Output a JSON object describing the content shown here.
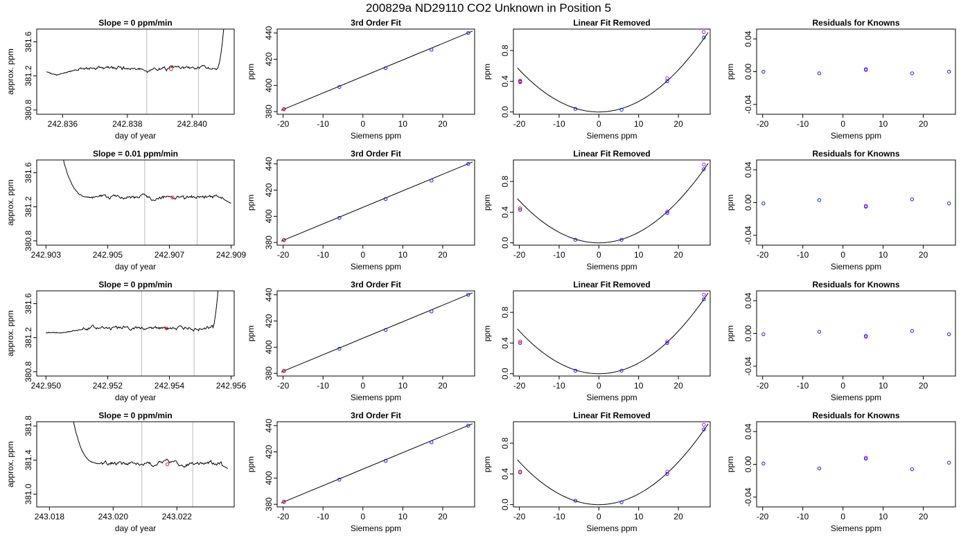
{
  "figure_title": "200829a     ND29110   CO2 Unknown in Position  5",
  "chart_data": [
    {
      "type": "line",
      "row": 0,
      "col": 0,
      "title": "Slope =  0  ppm/min",
      "xlabel": "day of year",
      "ylabel": "approx. ppm",
      "xlim": [
        242.8352,
        242.8413
      ],
      "ylim": [
        380.75,
        381.75
      ],
      "xticks": [
        242.836,
        242.838,
        242.84
      ],
      "xtick_labels": [
        "242.836",
        "242.838",
        "242.840"
      ],
      "yticks": [
        380.8,
        381.2,
        381.6
      ],
      "ytick_labels": [
        "380.8",
        "381.2",
        "381.6"
      ],
      "vlines": [
        242.8386,
        242.8402
      ],
      "trace": {
        "x0": 242.8355,
        "x1": 242.841,
        "base": 381.29,
        "seed": 11,
        "lead": [
          {
            "dx": 0,
            "v": 381.25
          },
          {
            "dx": 0.0003,
            "v": 381.21
          },
          {
            "dx": 0.0009,
            "v": 381.27
          }
        ],
        "dips": [
          {
            "x": 242.8386,
            "v": 381.25,
            "w": 0.00015
          }
        ],
        "tail": {
          "x": 242.8408,
          "v": 381.31,
          "end": 381.85
        }
      },
      "markers": [
        {
          "x": 242.83935,
          "y": 381.28,
          "color": "#ff0000"
        }
      ]
    },
    {
      "type": "scatter",
      "row": 0,
      "col": 1,
      "title": "3rd Order Fit",
      "xlabel": "Siemens ppm",
      "ylabel": "ppm",
      "xlim": [
        -21.5,
        28
      ],
      "ylim": [
        378,
        443
      ],
      "xticks": [
        -20,
        -10,
        0,
        10,
        20
      ],
      "xtick_labels": [
        "-20",
        "-10",
        "0",
        "10",
        "20"
      ],
      "yticks": [
        380,
        400,
        420,
        440
      ],
      "ytick_labels": [
        "380",
        "400",
        "420",
        "440"
      ],
      "points": [
        {
          "x": -19.8,
          "y": 381.8
        },
        {
          "x": -5.9,
          "y": 398.8
        },
        {
          "x": 5.7,
          "y": 413.2
        },
        {
          "x": 17.2,
          "y": 427.3
        },
        {
          "x": 26.4,
          "y": 440.0
        }
      ],
      "line": [
        [
          -20.5,
          381.0
        ],
        [
          27.5,
          441.5
        ]
      ],
      "markers": [
        {
          "x": -19.8,
          "y": 382.0,
          "color": "#ff0000"
        }
      ]
    },
    {
      "type": "scatter",
      "row": 0,
      "col": 2,
      "title": "Linear Fit Removed",
      "xlabel": "Siemens ppm",
      "ylabel": "ppm",
      "xlim": [
        -21.5,
        28
      ],
      "ylim": [
        -0.03,
        1.08
      ],
      "xticks": [
        -20,
        -10,
        0,
        10,
        20
      ],
      "xtick_labels": [
        "-20",
        "-10",
        "0",
        "10",
        "20"
      ],
      "yticks": [
        0.0,
        0.4,
        0.8
      ],
      "ytick_labels": [
        "0.0",
        "0.4",
        "0.8"
      ],
      "curve": {
        "a": 0.00137,
        "b": 0.0,
        "c": 0.0,
        "x0": -20.5,
        "x1": 27.5
      },
      "points": [
        {
          "x": -19.8,
          "y": 0.39
        },
        {
          "x": -5.9,
          "y": 0.04
        },
        {
          "x": 5.7,
          "y": 0.03
        },
        {
          "x": 17.2,
          "y": 0.4
        },
        {
          "x": 26.4,
          "y": 0.97
        }
      ],
      "points2": [
        {
          "x": -19.8,
          "y": 0.41
        },
        {
          "x": 17.2,
          "y": 0.44
        },
        {
          "x": 26.4,
          "y": 1.04
        }
      ],
      "markers": [
        {
          "x": -19.8,
          "y": 0.4,
          "color": "#ff0000"
        }
      ]
    },
    {
      "type": "scatter",
      "row": 0,
      "col": 3,
      "title": "Residuals for Knowns",
      "xlabel": "Siemens ppm",
      "ylabel": "ppm",
      "xlim": [
        -21.5,
        28
      ],
      "ylim": [
        -0.052,
        0.052
      ],
      "xticks": [
        -20,
        -10,
        0,
        10,
        20
      ],
      "xtick_labels": [
        "-20",
        "-10",
        "0",
        "10",
        "20"
      ],
      "yticks": [
        -0.04,
        0.0,
        0.04
      ],
      "ytick_labels": [
        "-0.04",
        "0.00",
        "0.04"
      ],
      "points": [
        {
          "x": -19.8,
          "y": 0.0
        },
        {
          "x": -5.9,
          "y": -0.002
        },
        {
          "x": 5.7,
          "y": 0.003
        },
        {
          "x": 17.2,
          "y": -0.002
        },
        {
          "x": 26.4,
          "y": 0.0
        }
      ],
      "points2": [
        {
          "x": 5.7,
          "y": 0.002
        }
      ]
    },
    {
      "type": "line",
      "row": 1,
      "col": 0,
      "title": "Slope =  0.01  ppm/min",
      "xlabel": "day of year",
      "ylabel": "approx. ppm",
      "xlim": [
        242.9027,
        242.9091
      ],
      "ylim": [
        380.75,
        381.75
      ],
      "xticks": [
        242.903,
        242.905,
        242.907,
        242.909
      ],
      "xtick_labels": [
        "242.903",
        "242.905",
        "242.907",
        "242.909"
      ],
      "yticks": [
        380.8,
        381.2,
        381.6
      ],
      "ytick_labels": [
        "380.8",
        "381.2",
        "381.6"
      ],
      "vlines": [
        242.9062,
        242.9079
      ],
      "trace": {
        "x0": 242.9035,
        "x1": 242.909,
        "base": 381.31,
        "seed": 23,
        "head": {
          "x": 242.9035,
          "v": 381.85,
          "x1": 242.9045
        },
        "dips": [],
        "end": [
          {
            "dx": -0.0002,
            "v": 381.28
          },
          {
            "dx": 0,
            "v": 381.24
          }
        ]
      },
      "markers": [
        {
          "x": 242.9071,
          "y": 381.31,
          "color": "#ff0000"
        }
      ]
    },
    {
      "type": "scatter",
      "row": 1,
      "col": 1,
      "title": "3rd Order Fit",
      "xlabel": "Siemens ppm",
      "ylabel": "ppm",
      "xlim": [
        -21.5,
        28
      ],
      "ylim": [
        378,
        443
      ],
      "xticks": [
        -20,
        -10,
        0,
        10,
        20
      ],
      "xtick_labels": [
        "-20",
        "-10",
        "0",
        "10",
        "20"
      ],
      "yticks": [
        380,
        400,
        420,
        440
      ],
      "ytick_labels": [
        "380",
        "400",
        "420",
        "440"
      ],
      "points": [
        {
          "x": -19.8,
          "y": 381.8
        },
        {
          "x": -5.9,
          "y": 398.8
        },
        {
          "x": 5.7,
          "y": 413.2
        },
        {
          "x": 17.2,
          "y": 427.3
        },
        {
          "x": 26.4,
          "y": 440.0
        }
      ],
      "line": [
        [
          -20.5,
          381.0
        ],
        [
          27.5,
          441.5
        ]
      ],
      "markers": [
        {
          "x": -19.8,
          "y": 382.0,
          "color": "#ff0000"
        }
      ]
    },
    {
      "type": "scatter",
      "row": 1,
      "col": 2,
      "title": "Linear Fit Removed",
      "xlabel": "Siemens ppm",
      "ylabel": "ppm",
      "xlim": [
        -21.5,
        28
      ],
      "ylim": [
        -0.03,
        1.08
      ],
      "xticks": [
        -20,
        -10,
        0,
        10,
        20
      ],
      "xtick_labels": [
        "-20",
        "-10",
        "0",
        "10",
        "20"
      ],
      "yticks": [
        0.0,
        0.4,
        0.8
      ],
      "ytick_labels": [
        "0.0",
        "0.4",
        "0.8"
      ],
      "curve": {
        "a": 0.00137,
        "b": 0.0,
        "c": 0.0,
        "x0": -20.5,
        "x1": 27.5
      },
      "points": [
        {
          "x": -19.8,
          "y": 0.43
        },
        {
          "x": -5.9,
          "y": 0.04
        },
        {
          "x": 5.7,
          "y": 0.04
        },
        {
          "x": 17.2,
          "y": 0.39
        },
        {
          "x": 26.4,
          "y": 0.96
        }
      ],
      "points2": [
        {
          "x": 17.2,
          "y": 0.41
        },
        {
          "x": 26.4,
          "y": 1.02
        }
      ],
      "markers": [
        {
          "x": -19.8,
          "y": 0.45,
          "color": "#ff0000"
        }
      ]
    },
    {
      "type": "scatter",
      "row": 1,
      "col": 3,
      "title": "Residuals for Knowns",
      "xlabel": "Siemens ppm",
      "ylabel": "ppm",
      "xlim": [
        -21.5,
        28
      ],
      "ylim": [
        -0.052,
        0.052
      ],
      "xticks": [
        -20,
        -10,
        0,
        10,
        20
      ],
      "xtick_labels": [
        "-20",
        "-10",
        "0",
        "10",
        "20"
      ],
      "yticks": [
        -0.04,
        0.0,
        0.04
      ],
      "ytick_labels": [
        "-0.04",
        "0.00",
        "0.04"
      ],
      "points": [
        {
          "x": -19.8,
          "y": -0.001
        },
        {
          "x": -5.9,
          "y": 0.003
        },
        {
          "x": 5.7,
          "y": -0.005
        },
        {
          "x": 17.2,
          "y": 0.004
        },
        {
          "x": 26.4,
          "y": -0.001
        }
      ],
      "points2": [
        {
          "x": 5.7,
          "y": -0.004
        }
      ]
    },
    {
      "type": "line",
      "row": 2,
      "col": 0,
      "title": "Slope =  0  ppm/min",
      "xlabel": "day of year",
      "ylabel": "approx. ppm",
      "xlim": [
        242.9497,
        242.9561
      ],
      "ylim": [
        380.75,
        381.75
      ],
      "xticks": [
        242.95,
        242.952,
        242.954,
        242.956
      ],
      "xtick_labels": [
        "242.950",
        "242.952",
        "242.954",
        "242.956"
      ],
      "yticks": [
        380.8,
        381.2,
        381.6
      ],
      "ytick_labels": [
        "380.8",
        "381.2",
        "381.6"
      ],
      "vlines": [
        242.9531,
        242.9548
      ],
      "trace": {
        "x0": 242.95,
        "x1": 242.9556,
        "base": 381.32,
        "seed": 37,
        "lead": [
          {
            "dx": 0,
            "v": 381.26
          },
          {
            "dx": 0.0006,
            "v": 381.26
          },
          {
            "dx": 0.0012,
            "v": 381.3
          }
        ],
        "dips": [],
        "tail": {
          "x": 242.9554,
          "v": 381.31,
          "end": 381.85
        }
      },
      "markers": [
        {
          "x": 242.9539,
          "y": 381.31,
          "color": "#ff0000"
        }
      ]
    },
    {
      "type": "scatter",
      "row": 2,
      "col": 1,
      "title": "3rd Order Fit",
      "xlabel": "Siemens ppm",
      "ylabel": "ppm",
      "xlim": [
        -21.5,
        28
      ],
      "ylim": [
        378,
        443
      ],
      "xticks": [
        -20,
        -10,
        0,
        10,
        20
      ],
      "xtick_labels": [
        "-20",
        "-10",
        "0",
        "10",
        "20"
      ],
      "yticks": [
        380,
        400,
        420,
        440
      ],
      "ytick_labels": [
        "380",
        "400",
        "420",
        "440"
      ],
      "points": [
        {
          "x": -19.8,
          "y": 381.8
        },
        {
          "x": -5.9,
          "y": 398.8
        },
        {
          "x": 5.7,
          "y": 413.2
        },
        {
          "x": 17.2,
          "y": 427.3
        },
        {
          "x": 26.4,
          "y": 440.0
        }
      ],
      "line": [
        [
          -20.5,
          381.0
        ],
        [
          27.5,
          441.5
        ]
      ],
      "markers": [
        {
          "x": -19.8,
          "y": 382.0,
          "color": "#ff0000"
        }
      ]
    },
    {
      "type": "scatter",
      "row": 2,
      "col": 2,
      "title": "Linear Fit Removed",
      "xlabel": "Siemens ppm",
      "ylabel": "ppm",
      "xlim": [
        -21.5,
        28
      ],
      "ylim": [
        -0.03,
        1.08
      ],
      "xticks": [
        -20,
        -10,
        0,
        10,
        20
      ],
      "xtick_labels": [
        "-20",
        "-10",
        "0",
        "10",
        "20"
      ],
      "yticks": [
        0.0,
        0.4,
        0.8
      ],
      "ytick_labels": [
        "0.0",
        "0.4",
        "0.8"
      ],
      "curve": {
        "a": 0.00139,
        "b": 0.0,
        "c": 0.0,
        "x0": -20.5,
        "x1": 27.5
      },
      "points": [
        {
          "x": -19.8,
          "y": 0.4
        },
        {
          "x": -5.9,
          "y": 0.04
        },
        {
          "x": 5.7,
          "y": 0.04
        },
        {
          "x": 17.2,
          "y": 0.4
        },
        {
          "x": 26.4,
          "y": 0.97
        }
      ],
      "points2": [
        {
          "x": 17.2,
          "y": 0.42
        },
        {
          "x": 26.4,
          "y": 1.03
        }
      ],
      "markers": [
        {
          "x": -19.8,
          "y": 0.42,
          "color": "#ff0000"
        }
      ]
    },
    {
      "type": "scatter",
      "row": 2,
      "col": 3,
      "title": "Residuals for Knowns",
      "xlabel": "Siemens ppm",
      "ylabel": "ppm",
      "xlim": [
        -21.5,
        28
      ],
      "ylim": [
        -0.052,
        0.052
      ],
      "xticks": [
        -20,
        -10,
        0,
        10,
        20
      ],
      "xtick_labels": [
        "-20",
        "-10",
        "0",
        "10",
        "20"
      ],
      "yticks": [
        -0.04,
        0.0,
        0.04
      ],
      "ytick_labels": [
        "-0.04",
        "0.00",
        "0.04"
      ],
      "points": [
        {
          "x": -19.8,
          "y": -0.001
        },
        {
          "x": -5.9,
          "y": 0.002
        },
        {
          "x": 5.7,
          "y": -0.003
        },
        {
          "x": 17.2,
          "y": 0.003
        },
        {
          "x": 26.4,
          "y": -0.001
        }
      ],
      "points2": [
        {
          "x": 5.7,
          "y": -0.004
        }
      ]
    },
    {
      "type": "line",
      "row": 3,
      "col": 0,
      "title": "Slope =  0  ppm/min",
      "xlabel": "day of year",
      "ylabel": "approx. ppm",
      "xlim": [
        243.0176,
        243.0238
      ],
      "ylim": [
        380.85,
        381.85
      ],
      "xticks": [
        243.018,
        243.02,
        243.022
      ],
      "xtick_labels": [
        "243.018",
        "243.020",
        "243.022"
      ],
      "yticks": [
        381.0,
        381.4,
        381.8
      ],
      "ytick_labels": [
        "381.0",
        "381.4",
        "381.8"
      ],
      "vlines": [
        243.0209,
        243.0225
      ],
      "trace": {
        "x0": 243.0187,
        "x1": 243.0236,
        "base": 381.36,
        "seed": 51,
        "head": {
          "x": 243.0187,
          "v": 381.95,
          "x1": 243.0196
        },
        "dips": [],
        "end": [
          {
            "dx": -0.0002,
            "v": 381.34
          },
          {
            "dx": 0,
            "v": 381.3
          }
        ]
      },
      "markers": [
        {
          "x": 243.0217,
          "y": 381.35,
          "color": "#ff0000"
        }
      ]
    },
    {
      "type": "scatter",
      "row": 3,
      "col": 1,
      "title": "3rd Order Fit",
      "xlabel": "Siemens ppm",
      "ylabel": "ppm",
      "xlim": [
        -21.5,
        28
      ],
      "ylim": [
        378,
        443
      ],
      "xticks": [
        -20,
        -10,
        0,
        10,
        20
      ],
      "xtick_labels": [
        "-20",
        "-10",
        "0",
        "10",
        "20"
      ],
      "yticks": [
        380,
        400,
        420,
        440
      ],
      "ytick_labels": [
        "380",
        "400",
        "420",
        "440"
      ],
      "points": [
        {
          "x": -19.8,
          "y": 381.8
        },
        {
          "x": -5.9,
          "y": 398.8
        },
        {
          "x": 5.7,
          "y": 413.2
        },
        {
          "x": 17.2,
          "y": 427.3
        },
        {
          "x": 26.4,
          "y": 440.0
        }
      ],
      "line": [
        [
          -20.5,
          381.0
        ],
        [
          27.5,
          441.5
        ]
      ],
      "markers": [
        {
          "x": -19.8,
          "y": 382.0,
          "color": "#ff0000"
        }
      ]
    },
    {
      "type": "scatter",
      "row": 3,
      "col": 2,
      "title": "Linear Fit Removed",
      "xlabel": "Siemens ppm",
      "ylabel": "ppm",
      "xlim": [
        -21.5,
        28
      ],
      "ylim": [
        -0.03,
        1.08
      ],
      "xticks": [
        -20,
        -10,
        0,
        10,
        20
      ],
      "xtick_labels": [
        "-20",
        "-10",
        "0",
        "10",
        "20"
      ],
      "yticks": [
        0.0,
        0.4,
        0.8
      ],
      "ytick_labels": [
        "0.0",
        "0.4",
        "0.8"
      ],
      "curve": {
        "a": 0.00139,
        "b": 0.0,
        "c": 0.0,
        "x0": -20.5,
        "x1": 27.5
      },
      "points": [
        {
          "x": -19.8,
          "y": 0.42
        },
        {
          "x": -5.9,
          "y": 0.05
        },
        {
          "x": 5.7,
          "y": 0.03
        },
        {
          "x": 17.2,
          "y": 0.4
        },
        {
          "x": 26.4,
          "y": 0.98
        }
      ],
      "points2": [
        {
          "x": 17.2,
          "y": 0.43
        },
        {
          "x": 26.4,
          "y": 1.04
        }
      ],
      "markers": [
        {
          "x": -19.8,
          "y": 0.43,
          "color": "#ff0000"
        }
      ]
    },
    {
      "type": "scatter",
      "row": 3,
      "col": 3,
      "title": "Residuals for Knowns",
      "xlabel": "Siemens ppm",
      "ylabel": "ppm",
      "xlim": [
        -21.5,
        28
      ],
      "ylim": [
        -0.052,
        0.052
      ],
      "xticks": [
        -20,
        -10,
        0,
        10,
        20
      ],
      "xtick_labels": [
        "-20",
        "-10",
        "0",
        "10",
        "20"
      ],
      "yticks": [
        -0.04,
        0.0,
        0.04
      ],
      "ytick_labels": [
        "-0.04",
        "0.00",
        "0.04"
      ],
      "points": [
        {
          "x": -19.8,
          "y": 0.001
        },
        {
          "x": -5.9,
          "y": -0.005
        },
        {
          "x": 5.7,
          "y": 0.007
        },
        {
          "x": 17.2,
          "y": -0.006
        },
        {
          "x": 26.4,
          "y": 0.002
        }
      ],
      "points2": [
        {
          "x": 5.7,
          "y": 0.008
        }
      ]
    }
  ],
  "colors": {
    "trace": "#000000",
    "vline": "#bbbbbb",
    "point": "#0000ff",
    "point2": "#aa00ff",
    "marker": "#ff0000"
  }
}
